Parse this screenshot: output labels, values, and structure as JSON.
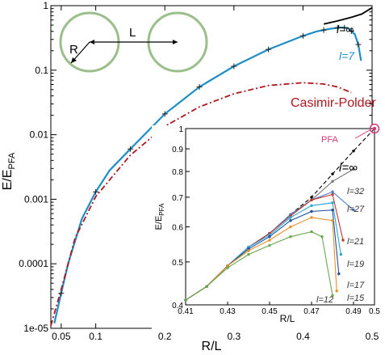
{
  "chart_data": [
    {
      "type": "line",
      "xlabel": "R/L",
      "ylabel_main": "E/E",
      "ylabel_sub": "PFA",
      "yscale": "log",
      "xlim": [
        0.035,
        0.5
      ],
      "ylim": [
        1e-05,
        1
      ],
      "xticks": [
        0.05,
        0.1,
        0.2,
        0.3,
        0.4,
        0.5
      ],
      "xtick_labels": [
        "0.05",
        "0.1",
        "0.2",
        "0.3",
        "0.4",
        "0.5"
      ],
      "yticks": [
        1e-05,
        0.0001,
        0.001,
        0.01,
        0.1,
        1
      ],
      "ytick_labels": [
        "1e-05",
        "0.0001",
        "0.001",
        "0.01",
        "0.1",
        "1"
      ],
      "series": [
        {
          "name": "l=∞",
          "color": "#000000",
          "style": "solid",
          "points": [
            [
              0.43,
              0.52
            ],
            [
              0.45,
              0.58
            ],
            [
              0.47,
              0.66
            ],
            [
              0.485,
              0.74
            ],
            [
              0.5,
              0.93
            ]
          ]
        },
        {
          "name": "l=7",
          "color": "#1e8fc6",
          "style": "solid",
          "points": [
            [
              0.04,
              1.2e-05
            ],
            [
              0.05,
              3.5e-05
            ],
            [
              0.06,
              0.0001
            ],
            [
              0.08,
              0.0005
            ],
            [
              0.1,
              0.0013
            ],
            [
              0.12,
              0.0028
            ],
            [
              0.15,
              0.006
            ],
            [
              0.2,
              0.021
            ],
            [
              0.25,
              0.055
            ],
            [
              0.3,
              0.115
            ],
            [
              0.35,
              0.21
            ],
            [
              0.4,
              0.34
            ],
            [
              0.42,
              0.4
            ],
            [
              0.44,
              0.44
            ],
            [
              0.455,
              0.46
            ],
            [
              0.465,
              0.45
            ],
            [
              0.475,
              0.36
            ],
            [
              0.48,
              0.25
            ],
            [
              0.484,
              0.14
            ]
          ]
        },
        {
          "name": "Casimir-Polder",
          "color": "#b0171f",
          "style": "dashdot",
          "points": [
            [
              0.035,
              1.1e-05
            ],
            [
              0.05,
              4e-05
            ],
            [
              0.07,
              0.00025
            ],
            [
              0.1,
              0.0011
            ],
            [
              0.15,
              0.0048
            ],
            [
              0.2,
              0.0135
            ],
            [
              0.25,
              0.027
            ],
            [
              0.3,
              0.043
            ],
            [
              0.35,
              0.058
            ],
            [
              0.4,
              0.064
            ],
            [
              0.43,
              0.061
            ],
            [
              0.45,
              0.055
            ],
            [
              0.47,
              0.045
            ]
          ]
        }
      ],
      "markers_l7": [
        0.05,
        0.1,
        0.15,
        0.2,
        0.25,
        0.3,
        0.35,
        0.4,
        0.43,
        0.45,
        0.46,
        0.47,
        0.48
      ],
      "annotations": {
        "linf": "l=∞",
        "l7": "l=7",
        "casimir": "Casimir-Polder",
        "R": "R",
        "L": "L"
      }
    },
    {
      "type": "line",
      "xlabel": "R/L",
      "ylabel_main": "E/E",
      "ylabel_sub": "PFA",
      "yscale": "log",
      "xlim": [
        0.41,
        0.5
      ],
      "ylim": [
        0.4,
        1
      ],
      "xticks": [
        0.41,
        0.43,
        0.45,
        0.47,
        0.49,
        0.5
      ],
      "xtick_labels": [
        "0.41",
        "0.43",
        "0.45",
        "0.47",
        "0.49",
        "0.5"
      ],
      "yticks": [
        0.4,
        0.5,
        0.6,
        0.7,
        0.8,
        0.9,
        1
      ],
      "ytick_labels": [
        "0.4",
        "0.5",
        "0.6",
        "0.7",
        "0.8",
        "0.9",
        "1"
      ],
      "pfa_label": "PFA",
      "pfa_point": [
        0.5,
        1.0
      ],
      "series": [
        {
          "name": "l=∞",
          "color": "#000000",
          "style": "dashed",
          "points": [
            [
              0.41,
              0.41
            ],
            [
              0.42,
              0.44
            ],
            [
              0.43,
              0.49
            ],
            [
              0.44,
              0.54
            ],
            [
              0.45,
              0.58
            ],
            [
              0.46,
              0.64
            ],
            [
              0.47,
              0.7
            ],
            [
              0.48,
              0.79
            ],
            [
              0.49,
              0.89
            ],
            [
              0.5,
              1.0
            ]
          ]
        },
        {
          "name": "l=32",
          "color": "#777777",
          "style": "solid",
          "points": [
            [
              0.41,
              0.41
            ],
            [
              0.42,
              0.44
            ],
            [
              0.43,
              0.49
            ],
            [
              0.44,
              0.54
            ],
            [
              0.45,
              0.58
            ],
            [
              0.46,
              0.64
            ],
            [
              0.47,
              0.69
            ],
            [
              0.48,
              0.76
            ],
            [
              0.49,
              0.81
            ]
          ]
        },
        {
          "name": "l=27",
          "color": "#4a7fd0",
          "style": "solid",
          "points": [
            [
              0.41,
              0.41
            ],
            [
              0.42,
              0.44
            ],
            [
              0.43,
              0.49
            ],
            [
              0.44,
              0.54
            ],
            [
              0.45,
              0.58
            ],
            [
              0.46,
              0.64
            ],
            [
              0.47,
              0.69
            ],
            [
              0.48,
              0.72
            ],
            [
              0.49,
              0.655
            ]
          ]
        },
        {
          "name": "l=21",
          "color": "#c0392b",
          "style": "solid",
          "points": [
            [
              0.41,
              0.41
            ],
            [
              0.42,
              0.44
            ],
            [
              0.43,
              0.49
            ],
            [
              0.44,
              0.54
            ],
            [
              0.45,
              0.58
            ],
            [
              0.46,
              0.635
            ],
            [
              0.47,
              0.69
            ],
            [
              0.48,
              0.71
            ],
            [
              0.485,
              0.56
            ]
          ]
        },
        {
          "name": "l=19",
          "color": "#29a7d6",
          "style": "solid",
          "points": [
            [
              0.41,
              0.41
            ],
            [
              0.42,
              0.44
            ],
            [
              0.43,
              0.49
            ],
            [
              0.44,
              0.54
            ],
            [
              0.45,
              0.575
            ],
            [
              0.46,
              0.63
            ],
            [
              0.47,
              0.67
            ],
            [
              0.48,
              0.68
            ],
            [
              0.484,
              0.52
            ]
          ]
        },
        {
          "name": "l=17",
          "color": "#2050a0",
          "style": "solid",
          "points": [
            [
              0.41,
              0.41
            ],
            [
              0.42,
              0.44
            ],
            [
              0.43,
              0.49
            ],
            [
              0.44,
              0.535
            ],
            [
              0.45,
              0.57
            ],
            [
              0.46,
              0.62
            ],
            [
              0.47,
              0.65
            ],
            [
              0.48,
              0.655
            ],
            [
              0.483,
              0.47
            ]
          ]
        },
        {
          "name": "l=15",
          "color": "#e8912a",
          "style": "solid",
          "points": [
            [
              0.41,
              0.41
            ],
            [
              0.42,
              0.44
            ],
            [
              0.43,
              0.49
            ],
            [
              0.44,
              0.53
            ],
            [
              0.45,
              0.56
            ],
            [
              0.46,
              0.6
            ],
            [
              0.47,
              0.63
            ],
            [
              0.48,
              0.62
            ],
            [
              0.482,
              0.43
            ]
          ]
        },
        {
          "name": "l=12",
          "color": "#6aa84f",
          "style": "solid",
          "points": [
            [
              0.41,
              0.41
            ],
            [
              0.42,
              0.44
            ],
            [
              0.43,
              0.485
            ],
            [
              0.44,
              0.52
            ],
            [
              0.45,
              0.545
            ],
            [
              0.46,
              0.57
            ],
            [
              0.47,
              0.585
            ],
            [
              0.475,
              0.57
            ],
            [
              0.48,
              0.42
            ]
          ]
        }
      ],
      "labels": {
        "linf": "l=∞",
        "l32": "l=32",
        "l27": "l=27",
        "l21": "l=21",
        "l19": "l=19",
        "l17": "l=17",
        "l15": "l=15",
        "l12": "l=12"
      }
    }
  ]
}
